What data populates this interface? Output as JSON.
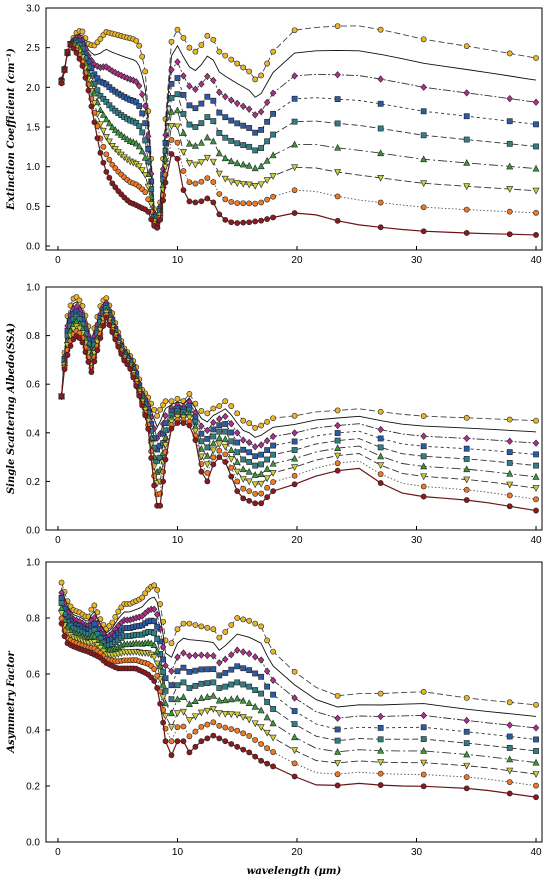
{
  "chart_data": [
    {
      "type": "line",
      "ylabel": "Extinction Coefficient (cm⁻¹)",
      "xlabel": "",
      "xlim": [
        -1,
        40.5
      ],
      "ylim": [
        -0.05,
        3.0
      ],
      "xticks": [
        "0",
        "10",
        "20",
        "30",
        "40"
      ],
      "yticks": [
        "0.0",
        "0.5",
        "1.0",
        "1.5",
        "2.0",
        "2.5",
        "3.0"
      ],
      "dense_profile": [
        [
          0.3,
          2.1
        ],
        [
          0.5,
          2.2
        ],
        [
          0.7,
          2.35
        ],
        [
          0.9,
          2.5
        ],
        [
          1.2,
          2.6
        ],
        [
          1.6,
          2.7
        ],
        [
          2.0,
          2.72
        ],
        [
          2.5,
          2.55
        ],
        [
          3.0,
          2.52
        ],
        [
          3.5,
          2.6
        ],
        [
          4.0,
          2.7
        ],
        [
          4.5,
          2.68
        ],
        [
          5.0,
          2.66
        ],
        [
          5.5,
          2.64
        ],
        [
          6.0,
          2.62
        ],
        [
          6.5,
          2.6
        ],
        [
          6.9,
          2.5
        ],
        [
          7.3,
          2.2
        ],
        [
          7.7,
          1.4
        ],
        [
          8.0,
          0.5
        ],
        [
          8.3,
          0.3
        ],
        [
          8.6,
          0.6
        ],
        [
          9.0,
          1.6
        ],
        [
          9.3,
          2.4
        ],
        [
          9.7,
          2.75
        ],
        [
          10.1,
          2.72
        ],
        [
          10.6,
          2.6
        ],
        [
          11.0,
          2.5
        ],
        [
          11.5,
          2.45
        ],
        [
          12.1,
          2.55
        ],
        [
          12.7,
          2.7
        ],
        [
          13.0,
          2.6
        ],
        [
          13.5,
          2.45
        ],
        [
          14.0,
          2.4
        ],
        [
          14.5,
          2.35
        ],
        [
          15.0,
          2.3
        ],
        [
          15.5,
          2.25
        ],
        [
          16.0,
          2.2
        ],
        [
          16.5,
          2.1
        ],
        [
          17.0,
          2.15
        ],
        [
          17.5,
          2.3
        ],
        [
          18.0,
          2.45
        ],
        [
          18.5,
          2.6
        ],
        [
          19.0,
          2.68
        ],
        [
          20.0,
          2.73
        ],
        [
          21.0,
          2.75
        ],
        [
          22.0,
          2.76
        ],
        [
          23.0,
          2.77
        ],
        [
          25.0,
          2.78
        ],
        [
          28.0,
          2.7
        ],
        [
          30.0,
          2.62
        ],
        [
          35.0,
          2.5
        ],
        [
          40.0,
          2.37
        ]
      ],
      "base_profile": [
        [
          0.3,
          2.05
        ],
        [
          0.5,
          2.15
        ],
        [
          0.7,
          2.4
        ],
        [
          1.0,
          2.55
        ],
        [
          1.5,
          2.45
        ],
        [
          2.0,
          2.3
        ],
        [
          2.5,
          2.0
        ],
        [
          3.0,
          1.6
        ],
        [
          3.5,
          1.2
        ],
        [
          4.0,
          0.95
        ],
        [
          4.5,
          0.8
        ],
        [
          5.0,
          0.7
        ],
        [
          5.5,
          0.62
        ],
        [
          6.0,
          0.55
        ],
        [
          6.5,
          0.52
        ],
        [
          7.0,
          0.48
        ],
        [
          7.5,
          0.45
        ],
        [
          8.0,
          0.26
        ],
        [
          8.3,
          0.23
        ],
        [
          8.6,
          0.35
        ],
        [
          9.0,
          0.8
        ],
        [
          9.3,
          1.1
        ],
        [
          9.7,
          1.22
        ],
        [
          10.0,
          1.1
        ],
        [
          10.4,
          0.75
        ],
        [
          10.8,
          0.57
        ],
        [
          11.3,
          0.55
        ],
        [
          11.8,
          0.55
        ],
        [
          12.5,
          0.6
        ],
        [
          13.0,
          0.55
        ],
        [
          13.5,
          0.4
        ],
        [
          14.0,
          0.33
        ],
        [
          14.5,
          0.3
        ],
        [
          15.0,
          0.29
        ],
        [
          16.0,
          0.3
        ],
        [
          17.0,
          0.32
        ],
        [
          18.0,
          0.36
        ],
        [
          19.0,
          0.4
        ],
        [
          20.0,
          0.42
        ],
        [
          21.0,
          0.41
        ],
        [
          22.0,
          0.38
        ],
        [
          23.0,
          0.33
        ],
        [
          25.0,
          0.27
        ],
        [
          28.0,
          0.22
        ],
        [
          30.0,
          0.19
        ],
        [
          35.0,
          0.16
        ],
        [
          40.0,
          0.14
        ]
      ],
      "series_count": 9
    },
    {
      "type": "line",
      "ylabel": "Single Scattering Albedo(SSA)",
      "xlabel": "",
      "xlim": [
        -1,
        40.5
      ],
      "ylim": [
        0.0,
        1.0
      ],
      "xticks": [
        "0",
        "10",
        "20",
        "30",
        "40"
      ],
      "yticks": [
        "0.0",
        "0.2",
        "0.4",
        "0.6",
        "0.8",
        "1.0"
      ],
      "dense_profile": [
        [
          0.3,
          0.55
        ],
        [
          0.5,
          0.7
        ],
        [
          0.8,
          0.88
        ],
        [
          1.2,
          0.95
        ],
        [
          1.6,
          0.96
        ],
        [
          2.0,
          0.93
        ],
        [
          2.5,
          0.85
        ],
        [
          2.8,
          0.78
        ],
        [
          3.2,
          0.86
        ],
        [
          3.6,
          0.93
        ],
        [
          4.0,
          0.96
        ],
        [
          4.5,
          0.9
        ],
        [
          5.0,
          0.82
        ],
        [
          5.5,
          0.75
        ],
        [
          6.0,
          0.72
        ],
        [
          6.5,
          0.68
        ],
        [
          7.0,
          0.58
        ],
        [
          7.5,
          0.55
        ],
        [
          8.0,
          0.5
        ],
        [
          8.3,
          0.47
        ],
        [
          8.6,
          0.5
        ],
        [
          9.0,
          0.53
        ],
        [
          9.5,
          0.53
        ],
        [
          10.0,
          0.54
        ],
        [
          10.5,
          0.53
        ],
        [
          11.0,
          0.56
        ],
        [
          11.5,
          0.52
        ],
        [
          12.0,
          0.49
        ],
        [
          12.5,
          0.48
        ],
        [
          13.0,
          0.5
        ],
        [
          13.5,
          0.51
        ],
        [
          14.0,
          0.53
        ],
        [
          14.5,
          0.51
        ],
        [
          15.0,
          0.48
        ],
        [
          15.5,
          0.45
        ],
        [
          16.0,
          0.44
        ],
        [
          16.5,
          0.42
        ],
        [
          17.0,
          0.43
        ],
        [
          18.0,
          0.46
        ],
        [
          19.0,
          0.47
        ],
        [
          20.0,
          0.47
        ],
        [
          21.0,
          0.48
        ],
        [
          22.0,
          0.49
        ],
        [
          23.0,
          0.49
        ],
        [
          25.0,
          0.5
        ],
        [
          28.0,
          0.48
        ],
        [
          30.0,
          0.47
        ],
        [
          35.0,
          0.46
        ],
        [
          40.0,
          0.45
        ]
      ],
      "base_profile": [
        [
          0.3,
          0.55
        ],
        [
          0.5,
          0.65
        ],
        [
          0.8,
          0.72
        ],
        [
          1.2,
          0.78
        ],
        [
          1.6,
          0.8
        ],
        [
          2.0,
          0.78
        ],
        [
          2.5,
          0.7
        ],
        [
          2.8,
          0.65
        ],
        [
          3.2,
          0.72
        ],
        [
          3.6,
          0.8
        ],
        [
          4.0,
          0.88
        ],
        [
          4.5,
          0.82
        ],
        [
          5.0,
          0.76
        ],
        [
          5.5,
          0.7
        ],
        [
          6.0,
          0.67
        ],
        [
          6.5,
          0.6
        ],
        [
          7.0,
          0.52
        ],
        [
          7.5,
          0.44
        ],
        [
          8.0,
          0.2
        ],
        [
          8.3,
          0.1
        ],
        [
          8.5,
          0.08
        ],
        [
          8.8,
          0.2
        ],
        [
          9.2,
          0.38
        ],
        [
          9.6,
          0.43
        ],
        [
          10.0,
          0.44
        ],
        [
          10.5,
          0.44
        ],
        [
          11.0,
          0.43
        ],
        [
          11.5,
          0.37
        ],
        [
          12.0,
          0.24
        ],
        [
          12.5,
          0.2
        ],
        [
          13.0,
          0.27
        ],
        [
          13.5,
          0.3
        ],
        [
          14.0,
          0.28
        ],
        [
          14.5,
          0.22
        ],
        [
          15.0,
          0.16
        ],
        [
          15.5,
          0.13
        ],
        [
          16.0,
          0.12
        ],
        [
          16.5,
          0.11
        ],
        [
          17.0,
          0.11
        ],
        [
          18.0,
          0.16
        ],
        [
          19.0,
          0.18
        ],
        [
          20.0,
          0.19
        ],
        [
          21.0,
          0.21
        ],
        [
          22.0,
          0.23
        ],
        [
          23.0,
          0.24
        ],
        [
          25.0,
          0.26
        ],
        [
          26.5,
          0.21
        ],
        [
          28.0,
          0.16
        ],
        [
          30.0,
          0.14
        ],
        [
          35.0,
          0.12
        ],
        [
          40.0,
          0.08
        ]
      ],
      "series_count": 9
    },
    {
      "type": "line",
      "ylabel": "Asymmetry Factor",
      "xlabel": "wavelength (μm)",
      "xlim": [
        -1,
        40.5
      ],
      "ylim": [
        0.0,
        1.0
      ],
      "xticks": [
        "0",
        "10",
        "20",
        "30",
        "40"
      ],
      "yticks": [
        "0.0",
        "0.2",
        "0.4",
        "0.6",
        "0.8",
        "1.0"
      ],
      "dense_profile": [
        [
          0.2,
          0.94
        ],
        [
          0.5,
          0.9
        ],
        [
          0.8,
          0.86
        ],
        [
          1.2,
          0.83
        ],
        [
          1.8,
          0.82
        ],
        [
          2.5,
          0.8
        ],
        [
          3.0,
          0.85
        ],
        [
          3.5,
          0.8
        ],
        [
          4.0,
          0.76
        ],
        [
          4.5,
          0.78
        ],
        [
          5.0,
          0.82
        ],
        [
          5.5,
          0.85
        ],
        [
          6.0,
          0.85
        ],
        [
          6.5,
          0.86
        ],
        [
          7.0,
          0.87
        ],
        [
          7.5,
          0.9
        ],
        [
          8.0,
          0.92
        ],
        [
          8.3,
          0.9
        ],
        [
          8.7,
          0.82
        ],
        [
          9.0,
          0.72
        ],
        [
          9.3,
          0.7
        ],
        [
          9.7,
          0.72
        ],
        [
          10.0,
          0.76
        ],
        [
          10.5,
          0.78
        ],
        [
          11.0,
          0.78
        ],
        [
          12.0,
          0.77
        ],
        [
          13.0,
          0.76
        ],
        [
          13.5,
          0.73
        ],
        [
          14.0,
          0.75
        ],
        [
          15.0,
          0.8
        ],
        [
          16.0,
          0.79
        ],
        [
          17.0,
          0.77
        ],
        [
          17.5,
          0.72
        ],
        [
          18.0,
          0.68
        ],
        [
          19.0,
          0.64
        ],
        [
          20.0,
          0.6
        ],
        [
          21.0,
          0.57
        ],
        [
          22.0,
          0.54
        ],
        [
          23.0,
          0.52
        ],
        [
          25.0,
          0.53
        ],
        [
          28.0,
          0.53
        ],
        [
          30.0,
          0.54
        ],
        [
          35.0,
          0.51
        ],
        [
          40.0,
          0.49
        ]
      ],
      "base_profile": [
        [
          0.2,
          0.8
        ],
        [
          0.5,
          0.74
        ],
        [
          0.8,
          0.71
        ],
        [
          1.2,
          0.7
        ],
        [
          1.8,
          0.69
        ],
        [
          2.5,
          0.68
        ],
        [
          3.0,
          0.67
        ],
        [
          3.5,
          0.66
        ],
        [
          4.0,
          0.64
        ],
        [
          4.5,
          0.63
        ],
        [
          5.0,
          0.62
        ],
        [
          5.5,
          0.62
        ],
        [
          6.0,
          0.62
        ],
        [
          6.5,
          0.62
        ],
        [
          7.0,
          0.61
        ],
        [
          7.5,
          0.6
        ],
        [
          8.0,
          0.58
        ],
        [
          8.3,
          0.55
        ],
        [
          8.7,
          0.46
        ],
        [
          9.0,
          0.36
        ],
        [
          9.3,
          0.31
        ],
        [
          9.7,
          0.31
        ],
        [
          10.0,
          0.36
        ],
        [
          10.5,
          0.36
        ],
        [
          11.0,
          0.32
        ],
        [
          12.0,
          0.36
        ],
        [
          13.0,
          0.38
        ],
        [
          13.5,
          0.37
        ],
        [
          14.0,
          0.36
        ],
        [
          15.0,
          0.34
        ],
        [
          16.0,
          0.32
        ],
        [
          17.0,
          0.29
        ],
        [
          18.0,
          0.27
        ],
        [
          19.0,
          0.25
        ],
        [
          20.0,
          0.23
        ],
        [
          21.0,
          0.21
        ],
        [
          22.0,
          0.2
        ],
        [
          23.0,
          0.2
        ],
        [
          25.0,
          0.21
        ],
        [
          28.0,
          0.2
        ],
        [
          30.0,
          0.2
        ],
        [
          35.0,
          0.19
        ],
        [
          40.0,
          0.16
        ]
      ],
      "series_count": 9
    }
  ],
  "series_styles": [
    {
      "color": "#6b1418",
      "marker": "circle",
      "marker_fill": "#8b1a1e",
      "dash": ""
    },
    {
      "color": "#555555",
      "marker": "circle",
      "marker_fill": "#ef7a26",
      "dash": "1.5,2"
    },
    {
      "color": "#333333",
      "marker": "triangle-down",
      "marker_fill": "#cfcf3a",
      "dash": "7,3"
    },
    {
      "color": "#333333",
      "marker": "triangle-up",
      "marker_fill": "#3a9a3a",
      "dash": "9,3,2,3"
    },
    {
      "color": "#333333",
      "marker": "square",
      "marker_fill": "#2f7f86",
      "dash": "6,3"
    },
    {
      "color": "#333333",
      "marker": "square",
      "marker_fill": "#2a5aa8",
      "dash": "3,3"
    },
    {
      "color": "#333333",
      "marker": "diamond",
      "marker_fill": "#b0308a",
      "dash": "8,2,2,2"
    },
    {
      "color": "#111111",
      "marker": "none",
      "marker_fill": "#000000",
      "dash": ""
    },
    {
      "color": "#444444",
      "marker": "circle",
      "marker_fill": "#e9b52a",
      "dash": "6,3"
    }
  ]
}
